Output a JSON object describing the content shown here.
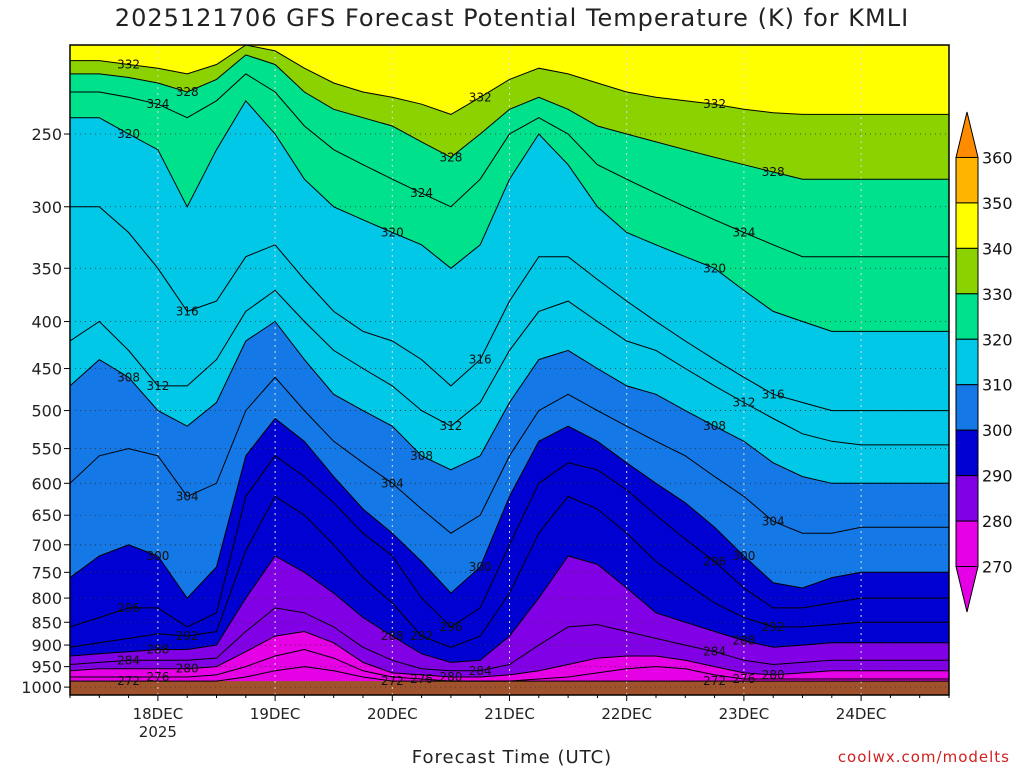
{
  "chart_data": {
    "type": "heatmap",
    "title": "2025121706 GFS Forecast Potential Temperature (K) for KMLI",
    "xlabel": "Forecast Time (UTC)",
    "ylabel": "",
    "credit": "coolwx.com/modelts",
    "x_ticks": [
      {
        "label": "18DEC",
        "sub": "2025",
        "day": 1.0
      },
      {
        "label": "19DEC",
        "sub": "",
        "day": 2.0
      },
      {
        "label": "20DEC",
        "sub": "",
        "day": 3.0
      },
      {
        "label": "21DEC",
        "sub": "",
        "day": 4.0
      },
      {
        "label": "22DEC",
        "sub": "",
        "day": 5.0
      },
      {
        "label": "23DEC",
        "sub": "",
        "day": 6.0
      },
      {
        "label": "24DEC",
        "sub": "",
        "day": 7.0
      }
    ],
    "xlim_days": [
      0.25,
      7.75
    ],
    "y_ticks": [
      250,
      300,
      350,
      400,
      450,
      500,
      550,
      600,
      650,
      700,
      750,
      800,
      850,
      900,
      950,
      1000
    ],
    "ylim": [
      200,
      1020
    ],
    "yscale": "log",
    "levels": [
      270,
      280,
      290,
      300,
      310,
      320,
      330,
      340,
      350,
      360
    ],
    "colorbar": {
      "labels": [
        "360",
        "350",
        "340",
        "330",
        "320",
        "310",
        "300",
        "290",
        "280",
        "270"
      ],
      "colors": [
        "#ff8c00",
        "#ffb400",
        "#ffff00",
        "#8cd200",
        "#00e18c",
        "#00c8e6",
        "#1478e6",
        "#0000d2",
        "#8200e6",
        "#e600e6"
      ]
    },
    "ground_color": "#a0522d",
    "times": [
      0.25,
      0.5,
      0.75,
      1.0,
      1.25,
      1.5,
      1.75,
      2.0,
      2.25,
      2.5,
      2.75,
      3.0,
      3.25,
      3.5,
      3.75,
      4.0,
      4.25,
      4.5,
      4.75,
      5.0,
      5.25,
      5.5,
      5.75,
      6.0,
      6.25,
      6.5,
      6.75,
      7.0,
      7.25,
      7.5,
      7.75
    ],
    "isentropes": [
      {
        "theta": 272,
        "p": [
          985,
          985,
          985,
          985,
          985,
          985,
          975,
          960,
          950,
          960,
          975,
          985,
          985,
          985,
          985,
          985,
          985,
          985,
          985,
          985,
          985,
          985,
          985,
          985,
          985,
          985,
          985,
          985,
          985,
          985,
          985
        ],
        "label": "272"
      },
      {
        "theta": 276,
        "p": [
          975,
          975,
          975,
          975,
          975,
          970,
          950,
          925,
          910,
          930,
          960,
          975,
          980,
          985,
          985,
          985,
          980,
          975,
          965,
          955,
          950,
          955,
          970,
          980,
          980,
          980,
          980,
          980,
          980,
          980,
          980
        ],
        "label": "276"
      },
      {
        "theta": 280,
        "p": [
          960,
          955,
          955,
          955,
          955,
          950,
          915,
          880,
          870,
          895,
          940,
          965,
          970,
          975,
          975,
          970,
          960,
          945,
          930,
          925,
          925,
          935,
          950,
          965,
          970,
          965,
          960,
          960,
          960,
          960,
          960
        ],
        "label": "280"
      },
      {
        "theta": 284,
        "p": [
          945,
          940,
          935,
          935,
          935,
          930,
          870,
          820,
          830,
          860,
          905,
          935,
          955,
          960,
          960,
          945,
          900,
          860,
          855,
          870,
          885,
          900,
          915,
          935,
          945,
          940,
          935,
          935,
          935,
          935,
          935
        ],
        "label": "284"
      },
      {
        "theta": 288,
        "p": [
          925,
          920,
          915,
          910,
          910,
          900,
          800,
          720,
          750,
          790,
          840,
          880,
          920,
          940,
          935,
          880,
          800,
          720,
          735,
          780,
          830,
          850,
          870,
          890,
          905,
          900,
          895,
          895,
          895,
          895,
          895
        ],
        "label": "288"
      },
      {
        "theta": 292,
        "p": [
          905,
          895,
          885,
          875,
          880,
          870,
          710,
          620,
          650,
          700,
          760,
          810,
          880,
          905,
          880,
          790,
          680,
          620,
          640,
          680,
          730,
          770,
          810,
          840,
          860,
          860,
          855,
          850,
          850,
          850,
          850
        ],
        "label": "292"
      },
      {
        "theta": 296,
        "p": [
          860,
          840,
          820,
          820,
          860,
          830,
          620,
          560,
          590,
          630,
          680,
          720,
          800,
          860,
          820,
          700,
          600,
          570,
          580,
          610,
          650,
          690,
          730,
          780,
          820,
          820,
          810,
          800,
          800,
          800,
          800
        ],
        "label": "296"
      },
      {
        "theta": 300,
        "p": [
          760,
          720,
          700,
          720,
          800,
          740,
          560,
          510,
          540,
          590,
          640,
          680,
          730,
          790,
          740,
          620,
          540,
          520,
          540,
          570,
          600,
          630,
          670,
          720,
          770,
          780,
          760,
          750,
          750,
          750,
          750
        ],
        "label": "300"
      },
      {
        "theta": 304,
        "p": [
          600,
          560,
          550,
          560,
          620,
          600,
          500,
          460,
          500,
          540,
          570,
          600,
          640,
          680,
          650,
          560,
          500,
          480,
          500,
          520,
          540,
          560,
          590,
          620,
          660,
          680,
          680,
          670,
          670,
          670,
          670
        ],
        "label": "304"
      },
      {
        "theta": 308,
        "p": [
          470,
          440,
          460,
          500,
          520,
          490,
          420,
          400,
          440,
          480,
          500,
          520,
          560,
          580,
          560,
          490,
          440,
          430,
          450,
          470,
          480,
          500,
          520,
          540,
          570,
          590,
          600,
          600,
          600,
          600,
          600
        ],
        "label": "308"
      },
      {
        "theta": 312,
        "p": [
          420,
          400,
          430,
          470,
          470,
          440,
          390,
          370,
          400,
          430,
          450,
          470,
          500,
          520,
          490,
          430,
          390,
          380,
          400,
          420,
          430,
          450,
          470,
          490,
          510,
          530,
          540,
          545,
          545,
          545,
          545
        ],
        "label": "312"
      },
      {
        "theta": 316,
        "p": [
          300,
          300,
          320,
          350,
          390,
          380,
          340,
          330,
          360,
          390,
          410,
          420,
          440,
          470,
          440,
          380,
          340,
          340,
          360,
          380,
          400,
          420,
          440,
          460,
          480,
          490,
          500,
          500,
          500,
          500,
          500
        ],
        "label": "316"
      },
      {
        "theta": 320,
        "p": [
          240,
          240,
          250,
          260,
          300,
          260,
          230,
          250,
          280,
          300,
          310,
          320,
          330,
          350,
          330,
          280,
          250,
          270,
          300,
          320,
          330,
          340,
          350,
          370,
          390,
          400,
          410,
          410,
          410,
          410,
          410
        ],
        "label": "320"
      },
      {
        "theta": 324,
        "p": [
          225,
          225,
          228,
          232,
          240,
          230,
          215,
          225,
          245,
          260,
          270,
          280,
          290,
          300,
          280,
          250,
          240,
          250,
          270,
          280,
          290,
          300,
          310,
          320,
          330,
          340,
          340,
          340,
          340,
          340,
          340
        ],
        "label": "324"
      },
      {
        "theta": 328,
        "p": [
          215,
          215,
          217,
          220,
          225,
          218,
          205,
          210,
          225,
          235,
          240,
          245,
          255,
          265,
          250,
          235,
          228,
          235,
          245,
          250,
          255,
          260,
          265,
          270,
          275,
          280,
          280,
          280,
          280,
          280,
          280
        ],
        "label": "328"
      },
      {
        "theta": 332,
        "p": [
          208,
          208,
          210,
          212,
          215,
          210,
          200,
          203,
          212,
          220,
          225,
          228,
          232,
          238,
          228,
          218,
          212,
          215,
          220,
          225,
          228,
          230,
          232,
          235,
          237,
          238,
          238,
          238,
          238,
          238,
          238
        ],
        "label": "332"
      }
    ]
  }
}
